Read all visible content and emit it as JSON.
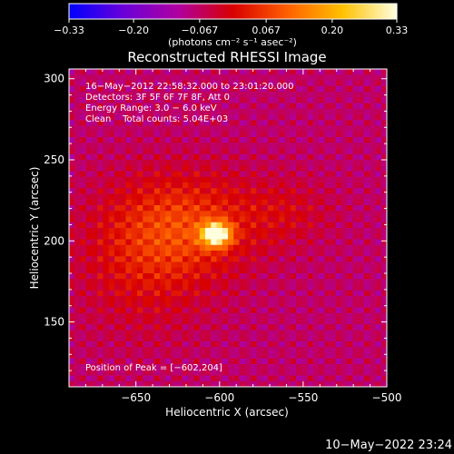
{
  "chart_data": {
    "type": "heatmap",
    "title": "Reconstructed RHESSI Image",
    "xlabel": "Heliocentric X (arcsec)",
    "ylabel": "Heliocentric Y (arcsec)",
    "xlim": [
      -690,
      -500
    ],
    "ylim": [
      110,
      306
    ],
    "x_ticks": [
      -650,
      -600,
      -550,
      -500
    ],
    "x_tick_labels": [
      "−650",
      "−600",
      "−550",
      "−500"
    ],
    "y_ticks": [
      150,
      200,
      250,
      300
    ],
    "y_tick_labels": [
      "150",
      "200",
      "250",
      "300"
    ],
    "colorbar": {
      "range": [
        -0.33,
        0.33
      ],
      "ticks": [
        -0.33,
        -0.2,
        -0.067,
        0.067,
        0.2,
        0.33
      ],
      "tick_labels": [
        "−0.33",
        "−0.20",
        "−0.067",
        "0.067",
        "0.20",
        "0.33"
      ],
      "unit_label": "(photons cm⁻² s⁻¹ asec⁻²)",
      "colors": [
        "#0000ff",
        "#6a00d8",
        "#b000a0",
        "#d80000",
        "#ff6000",
        "#ffc000",
        "#ffffe0"
      ]
    },
    "annotations": [
      "16−May−2012 22:58:32.000 to 23:01:20.000",
      "Detectors: 3F 5F 6F 7F 8F, Att 0",
      "Energy Range: 3.0 − 6.0 keV",
      "Clean    Total counts: 5.04E+03"
    ],
    "peak_label": "Position of Peak = [−602,204]",
    "peak": {
      "x": -602,
      "y": 204
    },
    "sources": [
      {
        "x": -602,
        "y": 204,
        "value": 0.33,
        "sigma_x": 6,
        "sigma_y": 5
      },
      {
        "x": -620,
        "y": 210,
        "value": 0.12,
        "sigma_x": 30,
        "sigma_y": 22
      },
      {
        "x": -645,
        "y": 185,
        "value": 0.07,
        "sigma_x": 28,
        "sigma_y": 30
      },
      {
        "x": -560,
        "y": 218,
        "value": 0.05,
        "sigma_x": 20,
        "sigma_y": 14
      }
    ],
    "background": -0.07
  },
  "footer": {
    "timestamp": "10−May−2022 23:24"
  }
}
